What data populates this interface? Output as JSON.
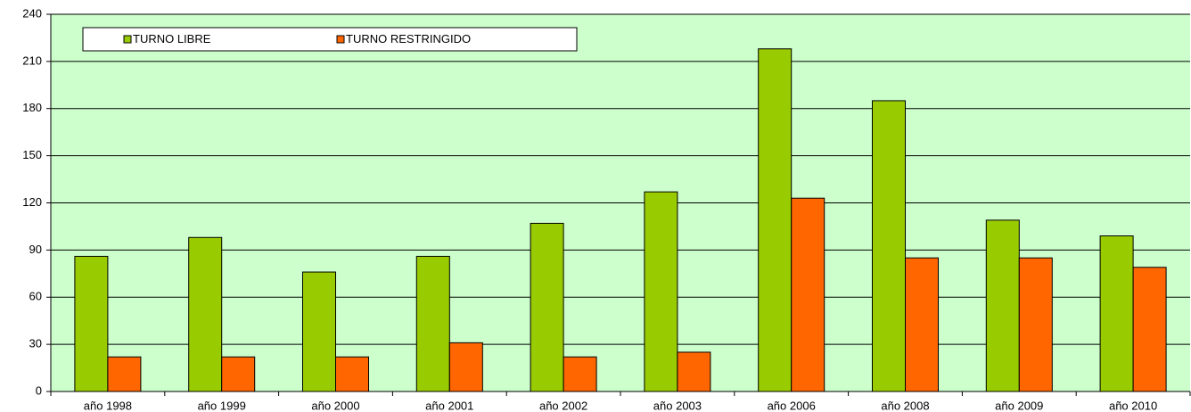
{
  "chart_data": {
    "type": "bar",
    "categories": [
      "año 1998",
      "año 1999",
      "año 2000",
      "año 2001",
      "año 2002",
      "año 2003",
      "año 2006",
      "año 2008",
      "año 2009",
      "año 2010"
    ],
    "series": [
      {
        "name": "TURNO LIBRE",
        "color": "#99cc00",
        "values": [
          86,
          98,
          76,
          86,
          107,
          127,
          218,
          185,
          109,
          99
        ]
      },
      {
        "name": "TURNO RESTRINGIDO",
        "color": "#ff6600",
        "values": [
          22,
          22,
          22,
          31,
          22,
          25,
          123,
          85,
          85,
          79
        ]
      }
    ],
    "ylim": [
      0,
      240
    ],
    "yticks": [
      0,
      30,
      60,
      90,
      120,
      150,
      180,
      210,
      240
    ],
    "grid": true,
    "legend": "top-left",
    "background": "#ccffcc"
  }
}
